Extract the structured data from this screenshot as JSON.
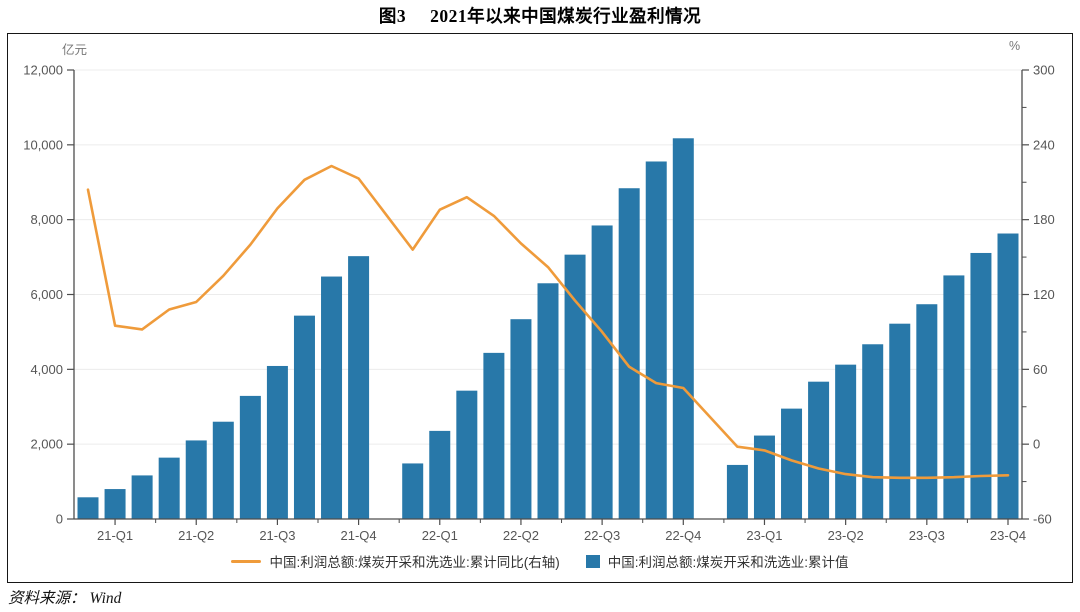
{
  "header": {
    "figure_no": "图3",
    "title": "2021年以来中国煤炭行业盈利情况"
  },
  "source": {
    "label": "资料来源：",
    "value": "Wind"
  },
  "colors": {
    "bar": "#2878A9",
    "line": "#EF9B3B",
    "grid": "#ECECEC",
    "axis": "#4D4D4D",
    "tick_text": "#565656"
  },
  "chart_data": {
    "type": "bar",
    "subtype": "bar+line combo, monthly cumulative series with January gaps",
    "title": "图3 2021年以来中国煤炭行业盈利情况",
    "months": [
      "2021-02",
      "2021-03",
      "2021-04",
      "2021-05",
      "2021-06",
      "2021-07",
      "2021-08",
      "2021-09",
      "2021-10",
      "2021-11",
      "2021-12",
      "2022-02",
      "2022-03",
      "2022-04",
      "2022-05",
      "2022-06",
      "2022-07",
      "2022-08",
      "2022-09",
      "2022-10",
      "2022-11",
      "2022-12",
      "2023-02",
      "2023-03",
      "2023-04",
      "2023-05",
      "2023-06",
      "2023-07",
      "2023-08",
      "2023-09",
      "2023-10",
      "2023-11",
      "2023-12"
    ],
    "bar_series": {
      "name": "中国:利润总额:煤炭开采和洗选业:累计值",
      "axis": "left",
      "unit": "亿元",
      "values": [
        580,
        800,
        1165,
        1640,
        2100,
        2600,
        3290,
        4090,
        5435,
        6480,
        7025,
        1485,
        2355,
        3430,
        4440,
        5340,
        6300,
        7065,
        7845,
        8840,
        9555,
        10175,
        1445,
        2230,
        2950,
        3670,
        4125,
        4670,
        5220,
        5740,
        6510,
        7110,
        7630
      ]
    },
    "line_series": {
      "name": "中国:利润总额:煤炭开采和洗选业:累计同比(右轴)",
      "axis": "right",
      "unit": "%",
      "values": [
        204,
        95,
        92,
        108,
        114,
        135,
        160,
        189,
        212,
        223,
        213,
        156,
        188,
        198,
        183,
        161,
        142,
        115,
        90,
        62,
        49,
        45,
        -2,
        -5,
        -13,
        -19.5,
        -24,
        -26.5,
        -27,
        -27,
        -26.5,
        -25.5,
        -25
      ]
    },
    "left_axis": {
      "unit": "亿元",
      "min": 0,
      "max": 12000,
      "ticks": [
        0,
        2000,
        4000,
        6000,
        8000,
        10000,
        12000
      ]
    },
    "right_axis": {
      "unit": "%",
      "min": -60,
      "max": 300,
      "ticks": [
        -60,
        0,
        60,
        120,
        180,
        240,
        300
      ],
      "minor_step": 30
    },
    "x_axis": {
      "labels": [
        "21-Q1",
        "21-Q2",
        "21-Q3",
        "21-Q4",
        "22-Q1",
        "22-Q2",
        "22-Q3",
        "22-Q4",
        "23-Q1",
        "23-Q2",
        "23-Q3",
        "23-Q4"
      ]
    },
    "legend_position": "bottom center",
    "grid": "horizontal light gridlines at left-axis ticks"
  }
}
